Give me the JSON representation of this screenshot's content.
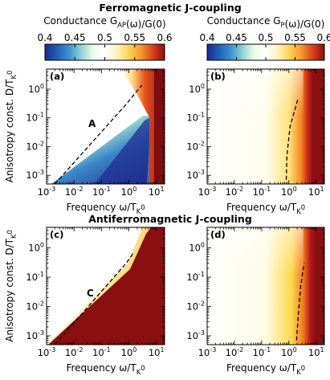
{
  "section_titles": {
    "top": "Ferromagnetic J-coupling",
    "bottom": "Antiferromagnetic J-coupling"
  },
  "colorbars": [
    {
      "label": "Conductance G_AP(ω)/G(0)",
      "range": [
        0.4,
        0.6
      ],
      "ticks": [
        "0.4",
        "0.45",
        "0.5",
        "0.55",
        "0.6"
      ],
      "colors": [
        "#1c2a8c",
        "#1f5fb8",
        "#3a93cf",
        "#8fd0d6",
        "#eefbe6",
        "#ffffff",
        "#fff4c0",
        "#ffd25a",
        "#f59a2b",
        "#d9421d",
        "#8a0f10"
      ]
    },
    {
      "label": "Conductance G_P(ω)/G(0)",
      "range": [
        0.4,
        0.6
      ],
      "ticks": [
        "0.4",
        "0.45",
        "0.5",
        "0.55",
        "0.6"
      ],
      "colors": [
        "#1c2a8c",
        "#1f5fb8",
        "#3a93cf",
        "#8fd0d6",
        "#eefbe6",
        "#ffffff",
        "#fff4c0",
        "#ffd25a",
        "#f59a2b",
        "#d9421d",
        "#8a0f10"
      ]
    }
  ],
  "chart_data": [
    {
      "type": "heatmap",
      "panel_label": "(a)",
      "annotation": "A",
      "xlabel": "Frequency ω/T_K^0",
      "ylabel": "Anisotropy const. D/T_K^0",
      "xscale": "log",
      "yscale": "log",
      "xlim": [
        0.001,
        20
      ],
      "ylim": [
        0.0005,
        5
      ],
      "x_ticks": [
        "10^-3",
        "10^-2",
        "10^-1",
        "10^0",
        "10^1"
      ],
      "y_ticks": [
        "10^-3",
        "10^-2",
        "10^-1",
        "10^0"
      ],
      "colorbar": 0,
      "dashed_line": [
        [
          0.002,
          0.0005
        ],
        [
          0.8,
          0.3
        ],
        [
          3,
          1.4
        ]
      ]
    },
    {
      "type": "heatmap",
      "panel_label": "(b)",
      "annotation": "",
      "xlabel": "Frequency ω/T_K^0",
      "ylabel": "",
      "xscale": "log",
      "yscale": "log",
      "xlim": [
        0.001,
        20
      ],
      "ylim": [
        0.0005,
        5
      ],
      "x_ticks": [
        "10^-3",
        "10^-2",
        "10^-1",
        "10^0",
        "10^1"
      ],
      "y_ticks": [
        "10^-3",
        "10^-2",
        "10^-1",
        "10^0"
      ],
      "colorbar": 1,
      "dashed_line": [
        [
          0.8,
          0.0007
        ],
        [
          0.85,
          0.005
        ],
        [
          1.1,
          0.05
        ],
        [
          2.2,
          0.5
        ]
      ]
    },
    {
      "type": "heatmap",
      "panel_label": "(c)",
      "annotation": "C",
      "xlabel": "Frequency ω/T_K^0",
      "ylabel": "Anisotropy const. D/T_K^0",
      "xscale": "log",
      "yscale": "log",
      "xlim": [
        0.001,
        20
      ],
      "ylim": [
        0.0005,
        5
      ],
      "x_ticks": [
        "10^-3",
        "10^-2",
        "10^-1",
        "10^0",
        "10^1"
      ],
      "y_ticks": [
        "10^-3",
        "10^-2",
        "10^-1",
        "10^0"
      ],
      "colorbar": 0,
      "dashed_line": [
        [
          0.002,
          0.0005
        ],
        [
          0.8,
          0.3
        ],
        [
          1.5,
          0.7
        ]
      ]
    },
    {
      "type": "heatmap",
      "panel_label": "(d)",
      "annotation": "",
      "xlabel": "Frequency ω/T_K^0",
      "ylabel": "",
      "xscale": "log",
      "yscale": "log",
      "xlim": [
        0.001,
        20
      ],
      "ylim": [
        0.0005,
        5
      ],
      "x_ticks": [
        "10^-3",
        "10^-2",
        "10^-1",
        "10^0",
        "10^1"
      ],
      "y_ticks": [
        "10^-3",
        "10^-2",
        "10^-1",
        "10^0"
      ],
      "colorbar": 1,
      "dashed_line": [
        [
          1.9,
          0.0007
        ],
        [
          2.2,
          0.005
        ],
        [
          2.7,
          0.05
        ],
        [
          3.6,
          0.3
        ]
      ]
    }
  ]
}
